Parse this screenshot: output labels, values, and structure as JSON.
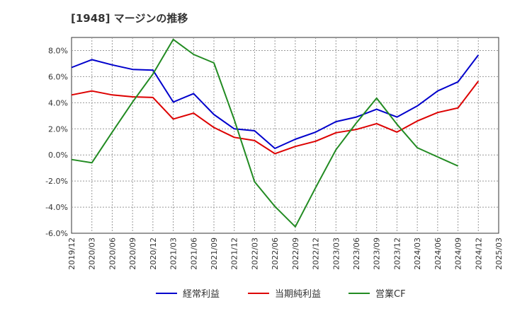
{
  "chart_data": {
    "type": "line",
    "title": "[1948]  マージンの推移",
    "xlabel": "",
    "ylabel": "",
    "ylim": [
      -6,
      9
    ],
    "grid": true,
    "legend_position": "bottom",
    "x_ticks": [
      "2019/12",
      "2020/03",
      "2020/06",
      "2020/09",
      "2020/12",
      "2021/03",
      "2021/06",
      "2021/09",
      "2021/12",
      "2022/03",
      "2022/06",
      "2022/09",
      "2022/12",
      "2023/03",
      "2023/06",
      "2023/09",
      "2023/12",
      "2024/03",
      "2024/06",
      "2024/09",
      "2024/12",
      "2025/03"
    ],
    "y_ticks": [
      {
        "value": 8,
        "label": "8.0%"
      },
      {
        "value": 6,
        "label": "6.0%"
      },
      {
        "value": 4,
        "label": "4.0%"
      },
      {
        "value": 2,
        "label": "2.0%"
      },
      {
        "value": 0,
        "label": "0.0%"
      },
      {
        "value": -2,
        "label": "-2.0%"
      },
      {
        "value": -4,
        "label": "-4.0%"
      },
      {
        "value": -6,
        "label": "-6.0%"
      }
    ],
    "series": [
      {
        "name": "経常利益",
        "color": "#0000cc",
        "x": [
          "2019/12",
          "2020/03",
          "2020/06",
          "2020/09",
          "2020/12",
          "2021/03",
          "2021/06",
          "2021/09",
          "2021/12",
          "2022/03",
          "2022/06",
          "2022/09",
          "2022/12",
          "2023/03",
          "2023/06",
          "2023/09",
          "2023/12",
          "2024/03",
          "2024/06",
          "2024/09",
          "2024/12"
        ],
        "values": [
          6.7,
          7.3,
          6.9,
          6.55,
          6.5,
          4.05,
          4.7,
          3.1,
          2.0,
          1.85,
          0.5,
          1.2,
          1.75,
          2.55,
          2.9,
          3.5,
          2.9,
          3.75,
          4.9,
          5.6,
          7.65
        ]
      },
      {
        "name": "当期純利益",
        "color": "#dd0000",
        "x": [
          "2019/12",
          "2020/03",
          "2020/06",
          "2020/09",
          "2020/12",
          "2021/03",
          "2021/06",
          "2021/09",
          "2021/12",
          "2022/03",
          "2022/06",
          "2022/09",
          "2022/12",
          "2023/03",
          "2023/06",
          "2023/09",
          "2023/12",
          "2024/03",
          "2024/06",
          "2024/09",
          "2024/12"
        ],
        "values": [
          4.6,
          4.9,
          4.6,
          4.45,
          4.4,
          2.75,
          3.2,
          2.1,
          1.35,
          1.1,
          0.1,
          0.65,
          1.05,
          1.7,
          1.95,
          2.4,
          1.75,
          2.6,
          3.25,
          3.6,
          5.65
        ]
      },
      {
        "name": "営業CF",
        "color": "#228b22",
        "x": [
          "2019/12",
          "2020/03",
          "2020/06",
          "2020/09",
          "2020/12",
          "2021/03",
          "2021/06",
          "2021/09",
          "2021/12",
          "2022/03",
          "2022/06",
          "2022/09",
          "2022/12",
          "2023/03",
          "2023/06",
          "2023/09",
          "2023/12",
          "2024/03",
          "2024/06",
          "2024/09"
        ],
        "values": [
          -0.35,
          -0.6,
          1.75,
          4.05,
          6.2,
          8.85,
          7.7,
          7.05,
          2.7,
          -2.05,
          -3.95,
          -5.5,
          -2.5,
          0.4,
          2.45,
          4.35,
          2.35,
          0.55,
          -0.15,
          -0.85
        ]
      }
    ]
  }
}
